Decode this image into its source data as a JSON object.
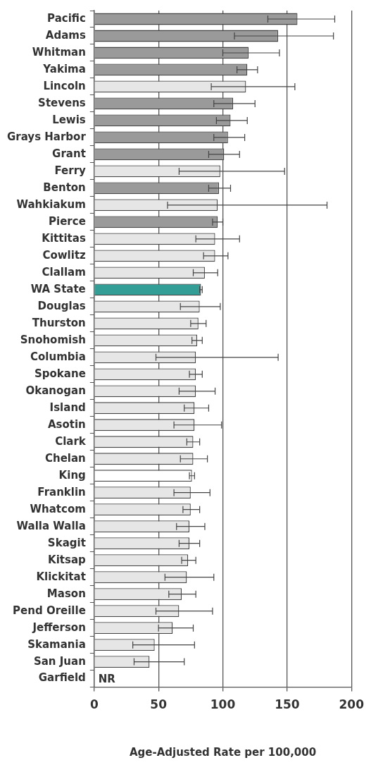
{
  "chart_data": {
    "type": "bar",
    "orientation": "horizontal",
    "xlabel": "Age-Adjusted Rate per 100,000",
    "categories": [
      "Pacific",
      "Adams",
      "Whitman",
      "Yakima",
      "Lincoln",
      "Stevens",
      "Lewis",
      "Grays Harbor",
      "Grant",
      "Ferry",
      "Benton",
      "Wahkiakum",
      "Pierce",
      "Kittitas",
      "Cowlitz",
      "Clallam",
      "WA State",
      "Douglas",
      "Thurston",
      "Snohomish",
      "Columbia",
      "Spokane",
      "Okanogan",
      "Island",
      "Asotin",
      "Clark",
      "Chelan",
      "King",
      "Franklin",
      "Whatcom",
      "Walla Walla",
      "Skagit",
      "Kitsap",
      "Klickitat",
      "Mason",
      "Pend Oreille",
      "Jefferson",
      "Skamania",
      "San Juan",
      "Garfield"
    ],
    "values": [
      158,
      143,
      120,
      119,
      118,
      108,
      106,
      104,
      101,
      98,
      97,
      96,
      96,
      94,
      94,
      86,
      83,
      82,
      81,
      80,
      79,
      79,
      79,
      78,
      78,
      77,
      77,
      76,
      75,
      75,
      74,
      74,
      73,
      72,
      68,
      66,
      61,
      47,
      43,
      null
    ],
    "errors": [
      [
        135,
        187
      ],
      [
        109,
        186
      ],
      [
        100,
        144
      ],
      [
        111,
        127
      ],
      [
        91,
        156
      ],
      [
        93,
        125
      ],
      [
        95,
        119
      ],
      [
        93,
        117
      ],
      [
        89,
        113
      ],
      [
        66,
        148
      ],
      [
        89,
        106
      ],
      [
        57,
        181
      ],
      [
        92,
        100
      ],
      [
        79,
        113
      ],
      [
        85,
        104
      ],
      [
        77,
        96
      ],
      [
        82,
        84
      ],
      [
        67,
        98
      ],
      [
        75,
        87
      ],
      [
        76,
        84
      ],
      [
        48,
        143
      ],
      [
        74,
        84
      ],
      [
        66,
        94
      ],
      [
        70,
        89
      ],
      [
        62,
        99
      ],
      [
        72,
        82
      ],
      [
        67,
        88
      ],
      [
        74,
        78
      ],
      [
        62,
        90
      ],
      [
        69,
        82
      ],
      [
        64,
        86
      ],
      [
        66,
        82
      ],
      [
        68,
        79
      ],
      [
        55,
        93
      ],
      [
        58,
        79
      ],
      [
        48,
        92
      ],
      [
        50,
        77
      ],
      [
        30,
        78
      ],
      [
        31,
        70
      ],
      null
    ],
    "value_labels": [
      null,
      null,
      null,
      null,
      null,
      null,
      null,
      null,
      null,
      null,
      null,
      null,
      null,
      null,
      null,
      null,
      null,
      null,
      null,
      null,
      null,
      null,
      null,
      null,
      null,
      null,
      null,
      null,
      null,
      null,
      null,
      null,
      null,
      null,
      null,
      null,
      null,
      null,
      null,
      "NR"
    ],
    "colors": [
      "#9a9a9a",
      "#9a9a9a",
      "#9a9a9a",
      "#9a9a9a",
      "#e6e6e6",
      "#9a9a9a",
      "#9a9a9a",
      "#9a9a9a",
      "#9a9a9a",
      "#e6e6e6",
      "#9a9a9a",
      "#e6e6e6",
      "#9a9a9a",
      "#e6e6e6",
      "#e6e6e6",
      "#e6e6e6",
      "#339e96",
      "#e6e6e6",
      "#e6e6e6",
      "#e6e6e6",
      "#e6e6e6",
      "#e6e6e6",
      "#e6e6e6",
      "#e6e6e6",
      "#e6e6e6",
      "#e6e6e6",
      "#e6e6e6",
      "#ffffff",
      "#e6e6e6",
      "#e6e6e6",
      "#e6e6e6",
      "#e6e6e6",
      "#e6e6e6",
      "#e6e6e6",
      "#e6e6e6",
      "#e6e6e6",
      "#e6e6e6",
      "#e6e6e6",
      "#e6e6e6",
      "#e6e6e6"
    ],
    "xlim": [
      0,
      200
    ],
    "xticks": [
      0,
      50,
      100,
      150,
      200
    ],
    "grid": "x",
    "legend": false
  }
}
